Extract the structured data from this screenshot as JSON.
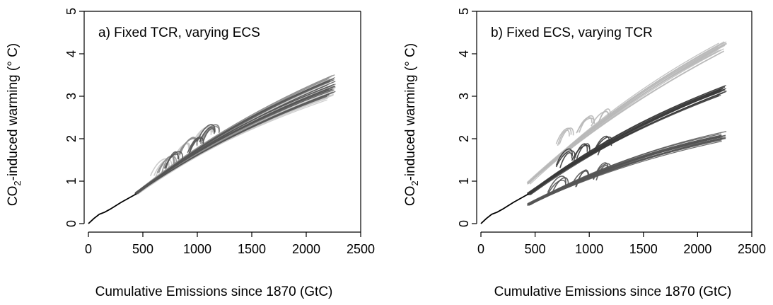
{
  "chart_data": [
    {
      "type": "line",
      "panel_label": "a) Fixed TCR, varying ECS",
      "xlabel": "Cumulative Emissions since 1870 (GtC)",
      "ylabel": {
        "pre": "CO",
        "sub": "2",
        "post": "-induced warming (° C)"
      },
      "xlim": [
        0,
        2500
      ],
      "ylim": [
        0,
        5
      ],
      "xticks": [
        "0",
        "500",
        "1000",
        "1500",
        "2000",
        "2500"
      ],
      "yticks": [
        "0",
        "1",
        "2",
        "3",
        "4",
        "5"
      ],
      "history": {
        "x": [
          0,
          50,
          100,
          150,
          200,
          300,
          440
        ],
        "y": [
          0,
          0.12,
          0.22,
          0.27,
          0.34,
          0.5,
          0.7
        ]
      },
      "series_groups": [
        {
          "color": "#c8c8c8",
          "start": [
            440,
            0.7
          ],
          "ends": [
            [
              2270,
              3.05
            ],
            [
              2270,
              3.15
            ],
            [
              2270,
              3.45
            ]
          ],
          "loops": [
            [
              700,
              1.35
            ],
            [
              900,
              1.75
            ],
            [
              1100,
              2.15
            ]
          ]
        },
        {
          "color": "#8c8c8c",
          "start": [
            440,
            0.72
          ],
          "ends": [
            [
              2270,
              3.25
            ],
            [
              2270,
              3.5
            ]
          ],
          "loops": [
            [
              750,
              1.45
            ],
            [
              950,
              1.85
            ],
            [
              1150,
              2.2
            ]
          ]
        },
        {
          "color": "#555555",
          "start": [
            440,
            0.72
          ],
          "ends": [
            [
              2270,
              3.15
            ],
            [
              2270,
              3.25
            ],
            [
              2270,
              3.4
            ]
          ],
          "loops": [
            [
              800,
              1.55
            ],
            [
              1000,
              1.9
            ],
            [
              1120,
              2.15
            ]
          ]
        }
      ]
    },
    {
      "type": "line",
      "panel_label": "b) Fixed ECS, varying TCR",
      "xlabel": "Cumulative Emissions since 1870 (GtC)",
      "ylabel": {
        "pre": "CO",
        "sub": "2",
        "post": "-induced warming (° C)"
      },
      "xlim": [
        0,
        2500
      ],
      "ylim": [
        0,
        5
      ],
      "xticks": [
        "0",
        "500",
        "1000",
        "1500",
        "2000",
        "2500"
      ],
      "yticks": [
        "0",
        "1",
        "2",
        "3",
        "4",
        "5"
      ],
      "history": {
        "x": [
          0,
          50,
          100,
          150,
          200,
          300,
          440
        ],
        "y": [
          0,
          0.12,
          0.22,
          0.27,
          0.34,
          0.5,
          0.7
        ]
      },
      "series_groups": [
        {
          "color": "#b8b8b8",
          "start": [
            440,
            0.95
          ],
          "ends": [
            [
              2270,
              4.25
            ],
            [
              2270,
              4.3
            ],
            [
              2270,
              4.15
            ]
          ],
          "loops": [
            [
              800,
              2.1
            ],
            [
              1000,
              2.4
            ],
            [
              1150,
              2.55
            ]
          ]
        },
        {
          "color": "#3a3a3a",
          "start": [
            440,
            0.7
          ],
          "ends": [
            [
              2270,
              3.2
            ],
            [
              2270,
              3.25
            ],
            [
              2270,
              3.15
            ]
          ],
          "loops": [
            [
              800,
              1.6
            ],
            [
              950,
              1.75
            ],
            [
              1150,
              1.9
            ]
          ]
        },
        {
          "color": "#555555",
          "start": [
            440,
            0.45
          ],
          "ends": [
            [
              2270,
              2.1
            ],
            [
              2270,
              2.05
            ],
            [
              2270,
              2.12
            ]
          ],
          "loops": [
            [
              750,
              0.95
            ],
            [
              950,
              1.15
            ],
            [
              1150,
              1.3
            ]
          ]
        }
      ]
    }
  ]
}
